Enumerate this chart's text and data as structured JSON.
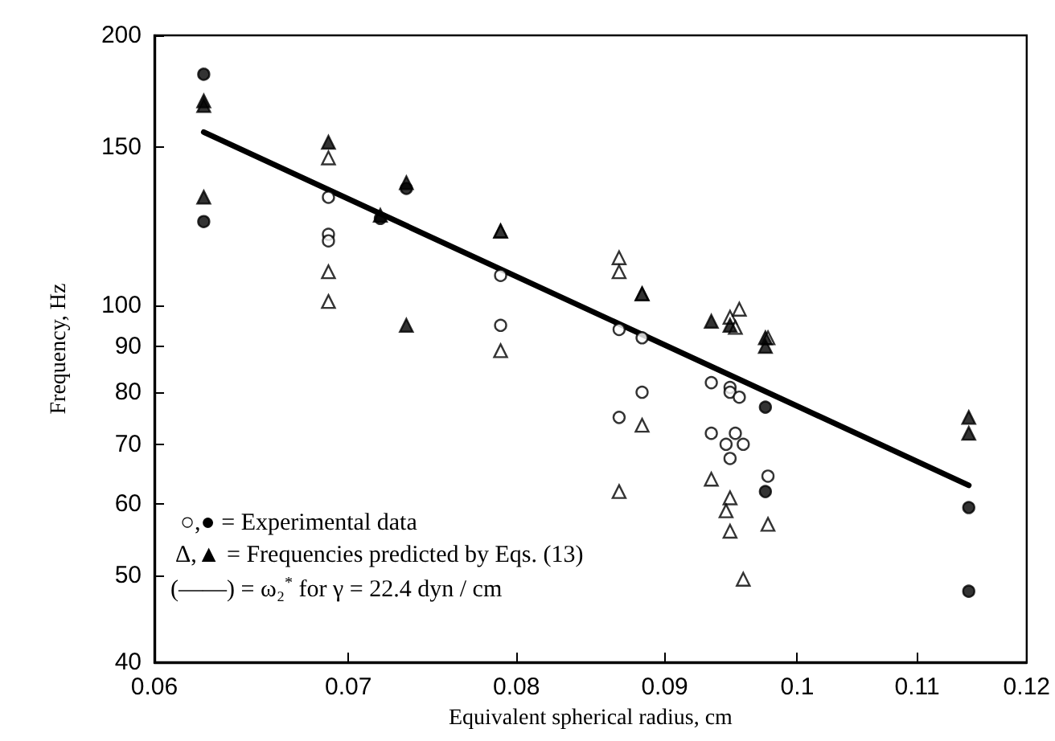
{
  "chart_data": {
    "type": "scatter",
    "xlabel": "Equivalent spherical radius, cm",
    "ylabel": "Frequency, Hz",
    "log": "xy",
    "grid": false,
    "xlim": [
      0.06,
      0.12
    ],
    "xticks": [
      0.06,
      0.07,
      0.08,
      0.09,
      0.1,
      0.11,
      0.12
    ],
    "ylim": [
      40,
      200
    ],
    "yticks": [
      40,
      50,
      60,
      70,
      80,
      90,
      100,
      150,
      200
    ],
    "annotations": [
      "○,● = Experimental data",
      "Δ,▲ = Frequencies predicted by Eqs. (13)",
      "(——) = ω₂$^{*}$ for γ = 22.4 dyn / cm"
    ],
    "series": [
      {
        "marker": "circle",
        "color": "#ffffff",
        "x": [
          0.0689,
          0.0689,
          0.0689,
          0.079,
          0.079,
          0.0868,
          0.0884,
          0.0868,
          0.0884,
          0.0934,
          0.0934,
          0.0948,
          0.0948,
          0.0955,
          0.0952,
          0.0945,
          0.0958,
          0.0948,
          0.0977
        ],
        "values": [
          132,
          120,
          118,
          108,
          95,
          94,
          92,
          75,
          80,
          82,
          72,
          81,
          80,
          79,
          72,
          70,
          70,
          67.5,
          64.5
        ]
      },
      {
        "marker": "circle",
        "color": "#000000",
        "x": [
          0.0624,
          0.0624,
          0.0718,
          0.0733,
          0.0975,
          0.0975,
          0.1146,
          0.1146
        ],
        "values": [
          181,
          124,
          125,
          135,
          77,
          62,
          59.5,
          48
        ]
      },
      {
        "marker": "triangle",
        "color": "#ffffff",
        "x": [
          0.0689,
          0.0689,
          0.0689,
          0.079,
          0.079,
          0.0868,
          0.0868,
          0.0884,
          0.0868,
          0.0884,
          0.0948,
          0.0955,
          0.0952,
          0.0977,
          0.0934,
          0.0948,
          0.0945,
          0.0948,
          0.0958,
          0.0977
        ],
        "values": [
          146,
          109,
          101,
          121,
          89,
          113,
          109,
          103,
          62,
          73.5,
          97,
          99,
          94.5,
          92,
          64,
          61,
          59,
          56,
          49.5,
          57
        ]
      },
      {
        "marker": "triangle",
        "color": "#000000",
        "x": [
          0.0624,
          0.0624,
          0.0624,
          0.0689,
          0.0718,
          0.0733,
          0.0733,
          0.079,
          0.0884,
          0.0934,
          0.0948,
          0.0975,
          0.0975,
          0.1146,
          0.1146
        ],
        "values": [
          169,
          167,
          132,
          152,
          126,
          137,
          95,
          121,
          103,
          96,
          95,
          92,
          90,
          75,
          72
        ]
      },
      {
        "type": "line",
        "marker": "none",
        "color": "#000000",
        "x": [
          0.0624,
          0.1146
        ],
        "values": [
          156,
          63
        ]
      }
    ]
  }
}
